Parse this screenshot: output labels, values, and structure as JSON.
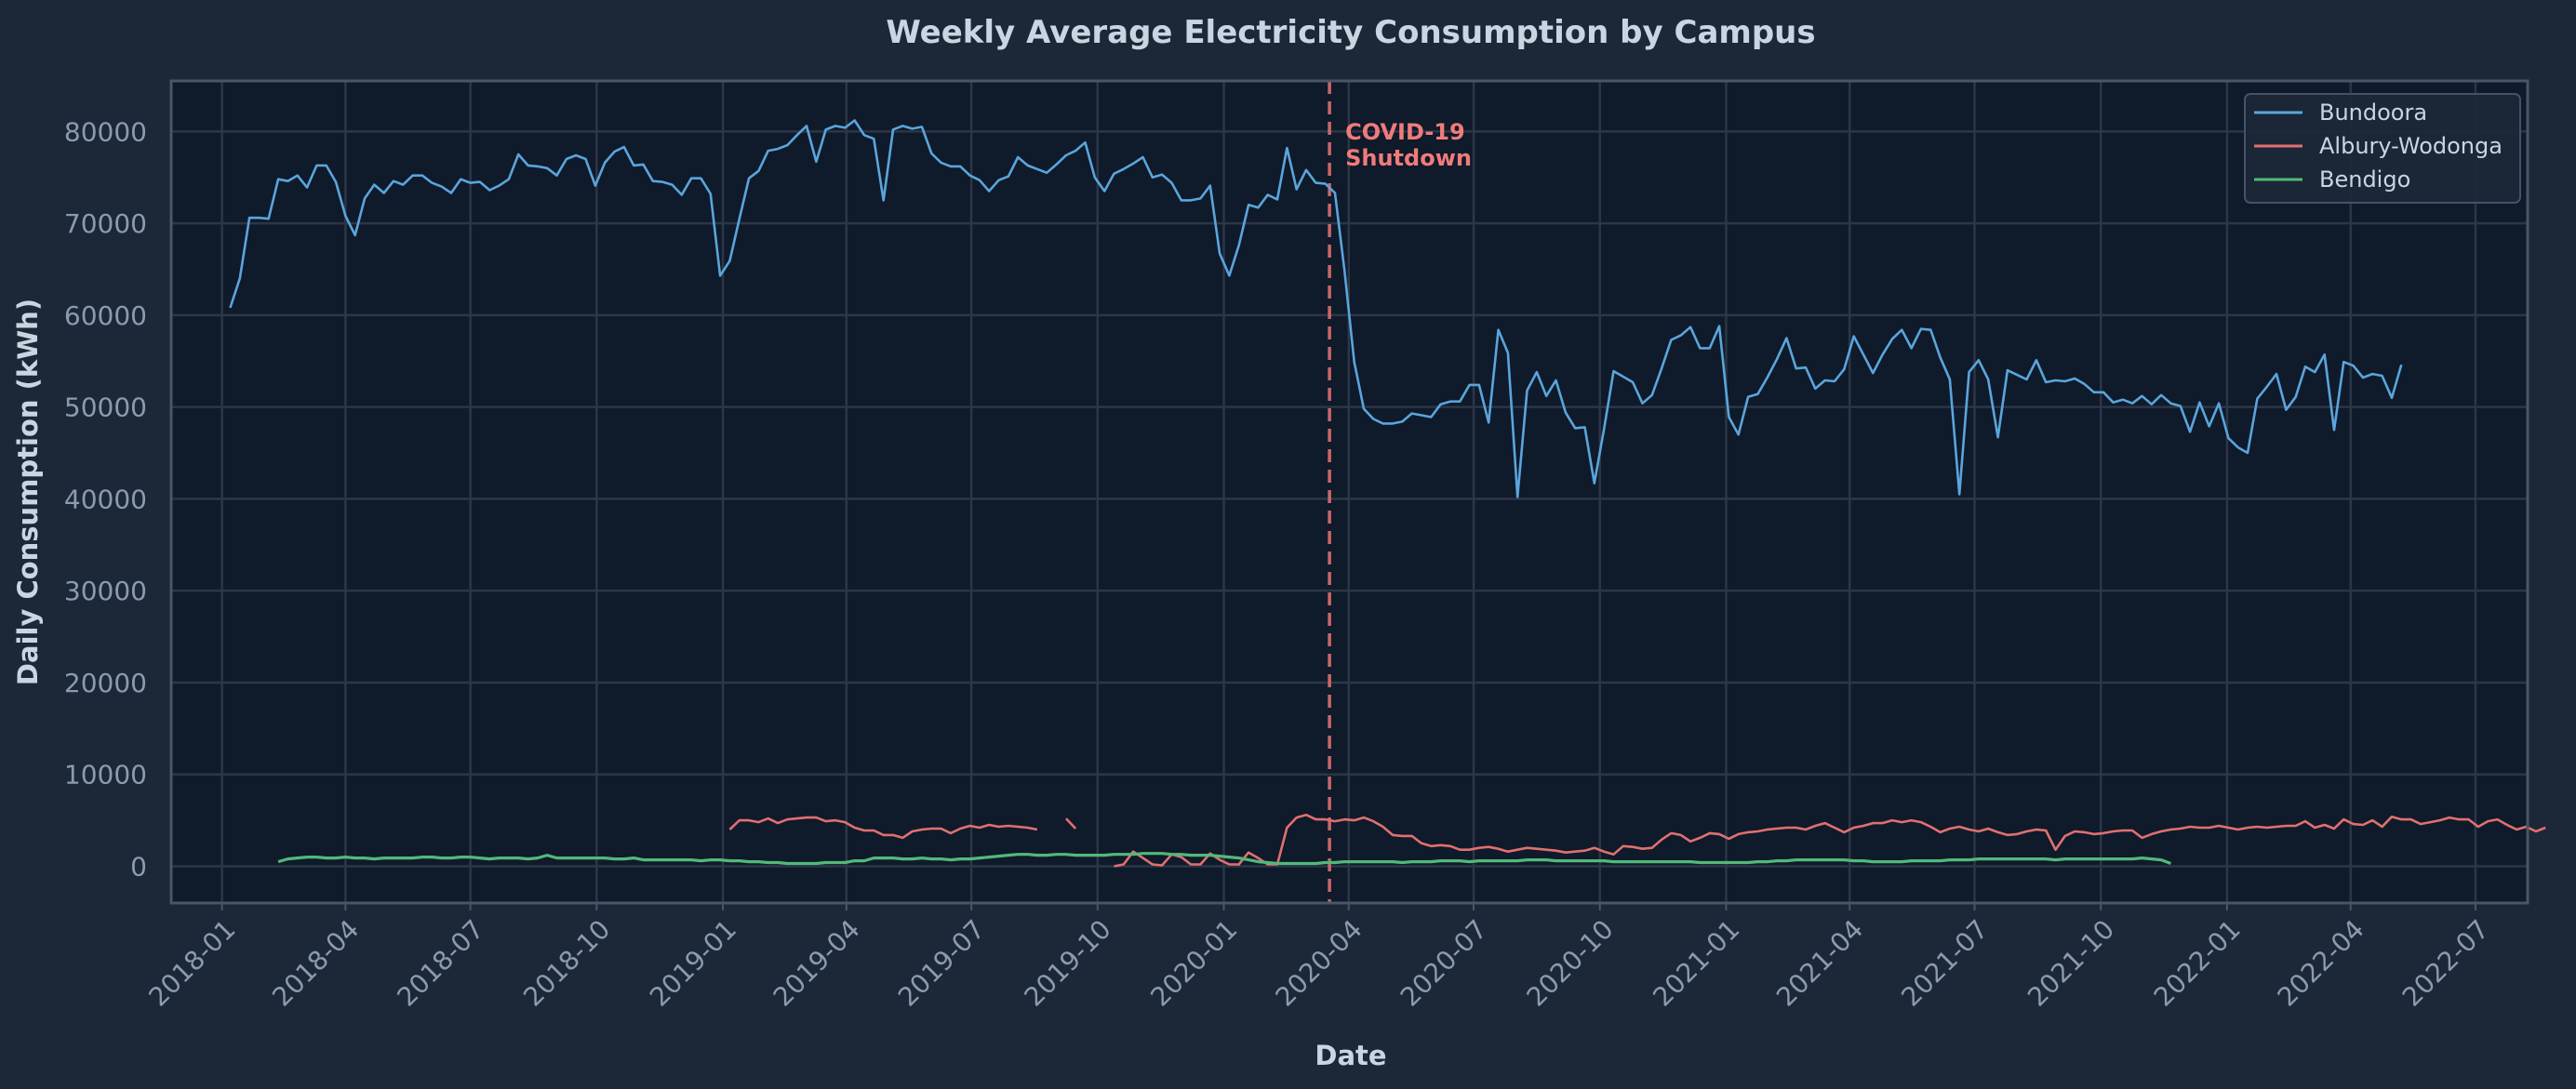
{
  "chart_data": {
    "type": "line",
    "title": "Weekly Average Electricity Consumption by Campus",
    "xlabel": "Date",
    "ylabel": "Daily Consumption (kWh)",
    "ylim": [
      -4000,
      85500
    ],
    "xlim": [
      "2017-11-25",
      "2022-08-08"
    ],
    "grid": true,
    "legend_position": "top-right",
    "yticks": [
      0,
      10000,
      20000,
      30000,
      40000,
      50000,
      60000,
      70000,
      80000
    ],
    "ytick_labels": [
      "0",
      "10000",
      "20000",
      "30000",
      "40000",
      "50000",
      "60000",
      "70000",
      "80000"
    ],
    "xticks": [
      "2018-01-01",
      "2018-04-01",
      "2018-07-01",
      "2018-10-01",
      "2019-01-01",
      "2019-04-01",
      "2019-07-01",
      "2019-10-01",
      "2020-01-01",
      "2020-04-01",
      "2020-07-01",
      "2020-10-01",
      "2021-01-01",
      "2021-04-01",
      "2021-07-01",
      "2021-10-01",
      "2022-01-01",
      "2022-04-01",
      "2022-07-01"
    ],
    "xtick_labels": [
      "2018-01",
      "2018-04",
      "2018-07",
      "2018-10",
      "2019-01",
      "2019-04",
      "2019-07",
      "2019-10",
      "2020-01",
      "2020-04",
      "2020-07",
      "2020-10",
      "2021-01",
      "2021-04",
      "2021-07",
      "2021-10",
      "2022-01",
      "2022-04",
      "2022-07"
    ],
    "annotation": {
      "date": "2020-03-18",
      "line1": "COVID-19",
      "line2": "Shutdown",
      "color": "#e07070"
    },
    "series": [
      {
        "name": "Bundoora",
        "color": "#5aa5dc",
        "start": "2018-01-07",
        "step_days": 7,
        "values": [
          60800,
          64000,
          70600,
          70600,
          70500,
          74800,
          74600,
          75200,
          73900,
          76300,
          76300,
          74500,
          70800,
          68700,
          72700,
          74200,
          73300,
          74600,
          74200,
          75200,
          75200,
          74400,
          74000,
          73300,
          74800,
          74400,
          74500,
          73600,
          74100,
          74800,
          77500,
          76300,
          76200,
          76000,
          75200,
          77000,
          77400,
          77000,
          74100,
          76600,
          77800,
          78300,
          76300,
          76400,
          74600,
          74500,
          74200,
          73100,
          74900,
          74900,
          73200,
          64300,
          65900,
          70500,
          74900,
          75700,
          77900,
          78100,
          78500,
          79600,
          80600,
          76700,
          80200,
          80600,
          80400,
          81200,
          79600,
          79200,
          72500,
          80200,
          80600,
          80300,
          80500,
          77600,
          76600,
          76200,
          76200,
          75200,
          74700,
          73500,
          74700,
          75100,
          77200,
          76300,
          75900,
          75500,
          76400,
          77400,
          77900,
          78800,
          75000,
          73500,
          75400,
          75900,
          76500,
          77200,
          75000,
          75300,
          74400,
          72500,
          72500,
          72700,
          74100,
          66700,
          64300,
          67600,
          72000,
          71700,
          73100,
          72600,
          78200,
          73700,
          75800,
          74400,
          74300,
          73300,
          64800,
          54900,
          49800,
          48700,
          48200,
          48200,
          48400,
          49300,
          49100,
          48900,
          50300,
          50600,
          50600,
          52400,
          52400,
          48300,
          58400,
          55900,
          40200,
          51800,
          53800,
          51200,
          52900,
          49400,
          47700,
          47800,
          41700,
          47600,
          53900,
          53300,
          52700,
          50400,
          51300,
          54200,
          57300,
          57800,
          58700,
          56400,
          56400,
          58800,
          48900,
          47000,
          51100,
          51400,
          53200,
          55200,
          57500,
          54200,
          54300,
          52000,
          52900,
          52800,
          54100,
          57700,
          55700,
          53700,
          55700,
          57400,
          58400,
          56400,
          58500,
          58400,
          55400,
          53000,
          40500,
          53800,
          55100,
          53000,
          46700,
          54000,
          53500,
          53000,
          55100,
          52700,
          52900,
          52800,
          53100,
          52500,
          51600,
          51600,
          50500,
          50800,
          50400,
          51200,
          50300,
          51300,
          50400,
          50100,
          47300,
          50500,
          47900,
          50400,
          46600,
          45600,
          45000,
          50900,
          52200,
          53600,
          49700,
          51100,
          54400,
          53800,
          55700,
          47500,
          54900,
          54500,
          53200,
          53600,
          53400,
          51000,
          54600
        ]
      },
      {
        "name": "Albury-Wodonga",
        "color": "#e07070",
        "start": "2019-01-06",
        "step_days": 7,
        "values": [
          4000,
          5000,
          5000,
          4800,
          5200,
          4700,
          5100,
          5200,
          5300,
          5300,
          4900,
          5000,
          4800,
          4200,
          3900,
          3900,
          3400,
          3400,
          3100,
          3800,
          4000,
          4100,
          4100,
          3600,
          4100,
          4400,
          4200,
          4500,
          4300,
          4400,
          4300,
          4200,
          4000,
          null,
          null,
          5200,
          4100,
          null,
          null,
          null,
          0,
          200,
          1600,
          900,
          200,
          100,
          1300,
          1000,
          200,
          200,
          1400,
          700,
          200,
          200,
          1500,
          900,
          200,
          200,
          4200,
          5300,
          5600,
          5100,
          5100,
          4900,
          5100,
          5000,
          5300,
          4900,
          4300,
          3400,
          3300,
          3300,
          2500,
          2200,
          2300,
          2200,
          1800,
          1800,
          2000,
          2100,
          1900,
          1600,
          1800,
          2000,
          1900,
          1800,
          1700,
          1500,
          1600,
          1700,
          2000,
          1600,
          1300,
          2200,
          2100,
          1900,
          2000,
          2900,
          3600,
          3400,
          2700,
          3100,
          3600,
          3500,
          3000,
          3500,
          3700,
          3800,
          4000,
          4100,
          4200,
          4200,
          4000,
          4400,
          4700,
          4200,
          3700,
          4200,
          4400,
          4700,
          4700,
          5000,
          4800,
          5000,
          4800,
          4300,
          3700,
          4100,
          4300,
          4000,
          3800,
          4100,
          3700,
          3400,
          3500,
          3800,
          4000,
          3900,
          1800,
          3300,
          3800,
          3700,
          3500,
          3600,
          3800,
          3900,
          3900,
          3100,
          3500,
          3800,
          4000,
          4100,
          4300,
          4200,
          4200,
          4400,
          4200,
          4000,
          4200,
          4300,
          4200,
          4300,
          4400,
          4400,
          4900,
          4200,
          4500,
          4100,
          5100,
          4600,
          4500,
          5000,
          4300,
          5400,
          5100,
          5100,
          4600,
          4800,
          5000,
          5300,
          5100,
          5100,
          4300,
          4900,
          5100,
          4500,
          4000,
          4300,
          3800,
          4200
        ]
      },
      {
        "name": "Bendigo",
        "color": "#52b979",
        "start": "2018-02-11",
        "step_days": 7,
        "values": [
          500,
          800,
          900,
          1000,
          1000,
          900,
          900,
          1000,
          900,
          900,
          800,
          900,
          900,
          900,
          900,
          1000,
          1000,
          900,
          900,
          1000,
          1000,
          900,
          800,
          900,
          900,
          900,
          800,
          900,
          1200,
          900,
          900,
          900,
          900,
          900,
          900,
          800,
          800,
          900,
          700,
          700,
          700,
          700,
          700,
          700,
          600,
          700,
          700,
          600,
          600,
          500,
          500,
          400,
          400,
          300,
          300,
          300,
          300,
          400,
          400,
          400,
          600,
          600,
          900,
          900,
          900,
          800,
          800,
          900,
          800,
          800,
          700,
          800,
          800,
          900,
          1000,
          1100,
          1200,
          1300,
          1300,
          1200,
          1200,
          1300,
          1300,
          1200,
          1200,
          1200,
          1200,
          1300,
          1300,
          1300,
          1400,
          1400,
          1400,
          1300,
          1300,
          1200,
          1200,
          1200,
          1100,
          1000,
          900,
          700,
          500,
          400,
          300,
          300,
          300,
          300,
          300,
          400,
          400,
          500,
          500,
          500,
          500,
          500,
          500,
          400,
          500,
          500,
          500,
          600,
          600,
          600,
          500,
          600,
          600,
          600,
          600,
          600,
          700,
          700,
          700,
          600,
          600,
          600,
          600,
          600,
          600,
          500,
          500,
          500,
          500,
          500,
          500,
          500,
          500,
          500,
          400,
          400,
          400,
          400,
          400,
          400,
          500,
          500,
          600,
          600,
          700,
          700,
          700,
          700,
          700,
          700,
          600,
          600,
          500,
          500,
          500,
          500,
          600,
          600,
          600,
          600,
          700,
          700,
          700,
          800,
          800,
          800,
          800,
          800,
          800,
          800,
          800,
          700,
          800,
          800,
          800,
          800,
          800,
          800,
          800,
          800,
          900,
          800,
          700,
          300
        ]
      }
    ]
  }
}
